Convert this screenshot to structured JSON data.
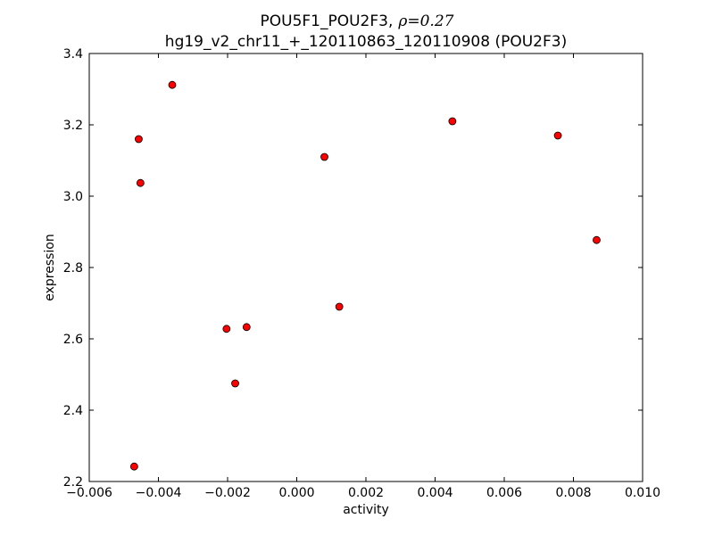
{
  "chart_data": {
    "type": "scatter",
    "title_line1": "POU5F1_POU2F3,",
    "title_rho_label": "ρ",
    "title_rho_value": "=0.27",
    "title_line2": "hg19_v2_chr11_+_120110863_120110908 (POU2F3)",
    "xlabel": "activity",
    "ylabel": "expression",
    "xlim": [
      -0.006,
      0.01
    ],
    "ylim": [
      2.2,
      3.4
    ],
    "xticks": [
      -0.006,
      -0.004,
      -0.002,
      0.0,
      0.002,
      0.004,
      0.006,
      0.008,
      0.01
    ],
    "xtick_labels": [
      "−0.006",
      "−0.004",
      "−0.002",
      "0.000",
      "0.002",
      "0.004",
      "0.006",
      "0.008",
      "0.010"
    ],
    "yticks": [
      2.2,
      2.4,
      2.6,
      2.8,
      3.0,
      3.2,
      3.4
    ],
    "ytick_labels": [
      "2.2",
      "2.4",
      "2.6",
      "2.8",
      "3.0",
      "3.2",
      "3.4"
    ],
    "grid": false,
    "marker_color": "#ff0000",
    "marker_edge_color": "#000000",
    "points": [
      {
        "x": -0.0036,
        "y": 3.312
      },
      {
        "x": -0.00457,
        "y": 3.16
      },
      {
        "x": -0.00452,
        "y": 3.037
      },
      {
        "x": -0.0047,
        "y": 2.242
      },
      {
        "x": -0.00203,
        "y": 2.628
      },
      {
        "x": -0.00145,
        "y": 2.633
      },
      {
        "x": -0.00178,
        "y": 2.475
      },
      {
        "x": 0.0008,
        "y": 3.11
      },
      {
        "x": 0.00123,
        "y": 2.69
      },
      {
        "x": 0.0045,
        "y": 3.21
      },
      {
        "x": 0.00755,
        "y": 3.17
      },
      {
        "x": 0.00867,
        "y": 2.877
      }
    ]
  }
}
